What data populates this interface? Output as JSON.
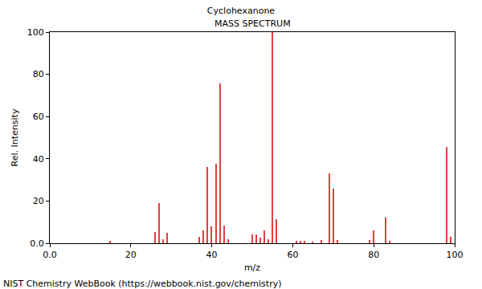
{
  "chart_data": {
    "type": "bar",
    "title": "Cyclohexanone",
    "subtitle": "MASS SPECTRUM",
    "x_label": "m/z",
    "y_label": "Rel. Intensity",
    "annotations": [
      "NIST Chemistry WebBook (https://webbook.nist.gov/chemistry)"
    ],
    "x": [
      15,
      26,
      27,
      28,
      29,
      37,
      38,
      39,
      40,
      41,
      42,
      43,
      44,
      50,
      51,
      52,
      53,
      54,
      55,
      56,
      61,
      62,
      63,
      65,
      67,
      69,
      70,
      71,
      79,
      80,
      83,
      84,
      98,
      99
    ],
    "values": [
      1,
      5.5,
      19,
      2,
      5,
      3,
      6,
      36,
      8,
      37.5,
      75.5,
      8.5,
      2,
      4,
      4,
      2.5,
      6,
      2,
      100,
      11.5,
      1,
      1,
      1,
      0.8,
      1.5,
      33,
      26,
      1.5,
      1.5,
      6,
      12,
      1,
      45.5,
      3
    ],
    "color": "#e04040",
    "xlim": [
      0,
      100
    ],
    "ylim": [
      0,
      100
    ],
    "xticks": [
      {
        "value": 0,
        "label": "0.0"
      },
      20,
      40,
      60,
      80,
      100
    ],
    "yticks": [
      {
        "value": 0,
        "label": "0.0"
      },
      20,
      40,
      60,
      80,
      100
    ],
    "grid": false
  }
}
